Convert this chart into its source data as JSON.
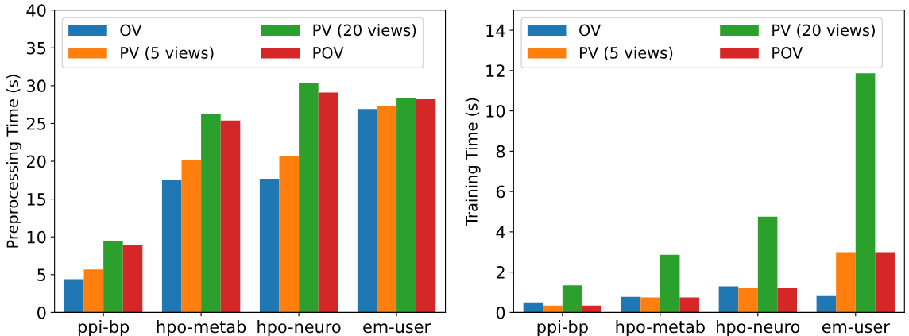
{
  "chart_data": [
    {
      "type": "bar",
      "ylabel": "Preprocessing Time (s)",
      "categories": [
        "ppi-bp",
        "hpo-metab",
        "hpo-neuro",
        "em-user"
      ],
      "ylim": [
        0,
        40
      ],
      "yticks": [
        0,
        5,
        10,
        15,
        20,
        25,
        30,
        35,
        40
      ],
      "grid": false,
      "legend": "top left",
      "series": [
        {
          "name": "OV",
          "color": "#1f77b4",
          "values": [
            4.4,
            17.6,
            17.7,
            26.9
          ]
        },
        {
          "name": "PV (5 views)",
          "color": "#ff7f0e",
          "values": [
            5.7,
            20.2,
            20.7,
            27.3
          ]
        },
        {
          "name": "PV (20 views)",
          "color": "#2ca02c",
          "values": [
            9.4,
            26.3,
            30.3,
            28.4
          ]
        },
        {
          "name": "POV",
          "color": "#d62728",
          "values": [
            8.9,
            25.4,
            29.1,
            28.2
          ]
        }
      ]
    },
    {
      "type": "bar",
      "ylabel": "Training Time (s)",
      "categories": [
        "ppi-bp",
        "hpo-metab",
        "hpo-neuro",
        "em-user"
      ],
      "ylim": [
        0,
        15
      ],
      "yticks": [
        0,
        2,
        4,
        6,
        8,
        10,
        12,
        14
      ],
      "grid": false,
      "legend": "top left",
      "series": [
        {
          "name": "OV",
          "color": "#1f77b4",
          "values": [
            0.5,
            0.77,
            1.3,
            0.81
          ]
        },
        {
          "name": "PV (5 views)",
          "color": "#ff7f0e",
          "values": [
            0.34,
            0.74,
            1.23,
            2.99
          ]
        },
        {
          "name": "PV (20 views)",
          "color": "#2ca02c",
          "values": [
            1.35,
            2.86,
            4.75,
            11.87
          ]
        },
        {
          "name": "POV",
          "color": "#d62728",
          "values": [
            0.34,
            0.74,
            1.23,
            2.99
          ]
        }
      ]
    }
  ]
}
